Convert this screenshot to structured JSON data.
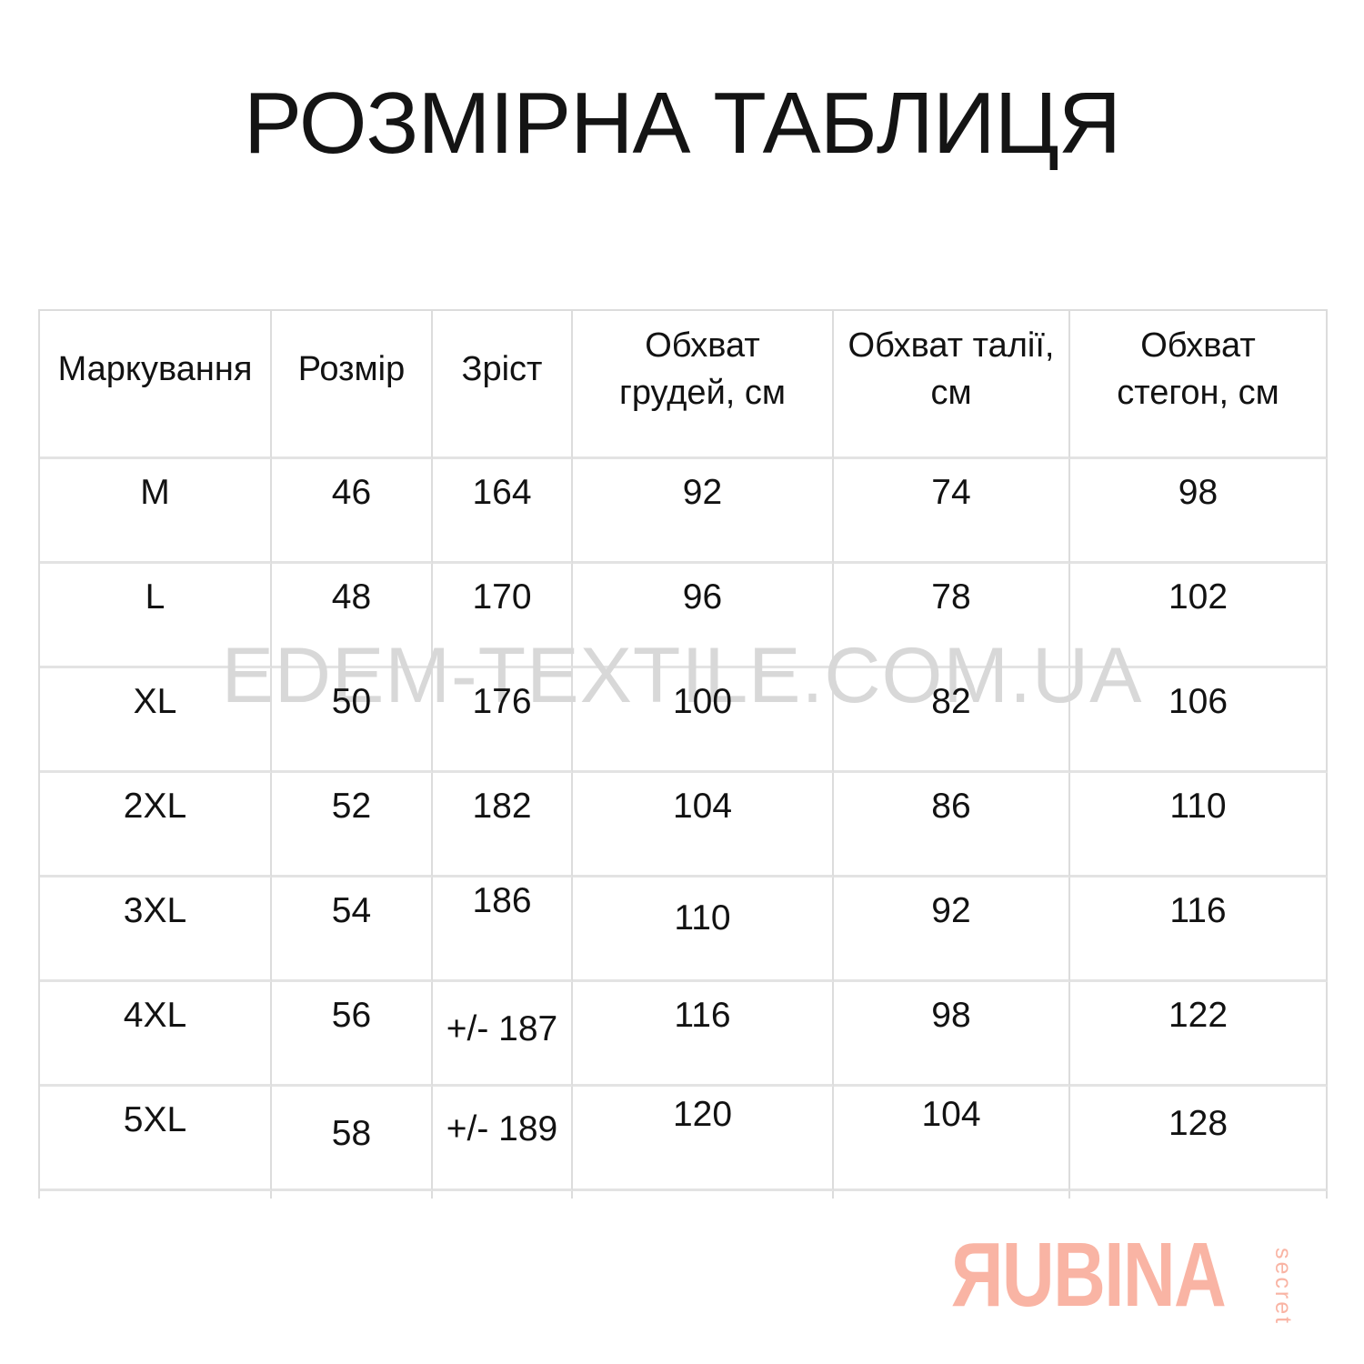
{
  "title": "РОЗМІРНА ТАБЛИЦЯ",
  "watermark": "EDEM-TEXTILE.COM.UA",
  "chart_data": {
    "type": "table",
    "title": "РОЗМІРНА ТАБЛИЦЯ",
    "columns": [
      "Маркування",
      "Розмір",
      "Зріст",
      "Обхват грудей, см",
      "Обхват талії, см",
      "Обхват стегон, см"
    ],
    "rows": [
      [
        "M",
        "46",
        "164",
        "92",
        "74",
        "98"
      ],
      [
        "L",
        "48",
        "170",
        "96",
        "78",
        "102"
      ],
      [
        "XL",
        "50",
        "176",
        "100",
        "82",
        "106"
      ],
      [
        "2XL",
        "52",
        "182",
        "104",
        "86",
        "110"
      ],
      [
        "3XL",
        "54",
        "186",
        "110",
        "92",
        "116"
      ],
      [
        "4XL",
        "56",
        "+/- 187",
        "116",
        "98",
        "122"
      ],
      [
        "5XL",
        "58",
        "+/- 189",
        "120",
        "104",
        "128"
      ]
    ]
  },
  "logo": {
    "brand": "ЯUBINA",
    "tagline": "secret",
    "color": "#f9b4a4"
  },
  "colors": {
    "text": "#141414",
    "watermark": "#d8d8d8",
    "grid_line": "#dcdcdc"
  }
}
